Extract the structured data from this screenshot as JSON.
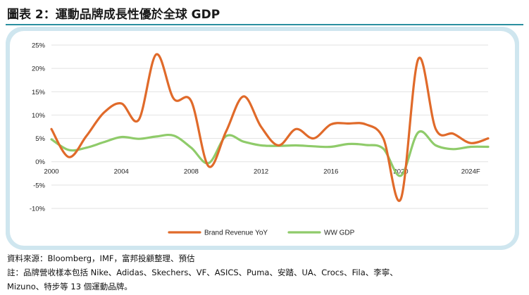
{
  "header": {
    "title": "圖表 2：運動品牌成長性優於全球 GDP",
    "accent_color": "#2a8fa0"
  },
  "panel": {
    "background_color": "#cfe6ef"
  },
  "chart_data": {
    "type": "line",
    "title": "",
    "xlabel": "",
    "ylabel": "",
    "x_ticks": [
      "2000",
      "2004",
      "2008",
      "2012",
      "2016",
      "2020",
      "2024F"
    ],
    "x_tick_years": [
      2000,
      2004,
      2008,
      2012,
      2016,
      2020,
      2024
    ],
    "x_range": [
      2000,
      2025
    ],
    "y_ticks": [
      "25%",
      "20%",
      "15%",
      "10%",
      "5%",
      "0%",
      "-5%",
      "-10%"
    ],
    "y_tick_values": [
      25,
      20,
      15,
      10,
      5,
      0,
      -5,
      -10
    ],
    "ylim": [
      -10,
      25
    ],
    "grid": true,
    "legend_position": "bottom",
    "x": [
      2000,
      2001,
      2002,
      2003,
      2004,
      2005,
      2006,
      2007,
      2008,
      2009,
      2010,
      2011,
      2012,
      2013,
      2014,
      2015,
      2016,
      2017,
      2018,
      2019,
      2020,
      2021,
      2022,
      2023,
      2024,
      2025
    ],
    "series": [
      {
        "name": "Brand Revenue YoY",
        "color": "#e06a2a",
        "values": [
          7,
          1,
          5.5,
          10.5,
          12.5,
          9,
          23,
          13.5,
          13,
          -1,
          6.5,
          14,
          7.5,
          3.5,
          7,
          5,
          8,
          8.2,
          8,
          5,
          -8,
          22,
          7,
          6,
          4,
          5
        ]
      },
      {
        "name": "WW GDP",
        "color": "#8fcb6a",
        "values": [
          4.8,
          2.5,
          3,
          4.2,
          5.3,
          4.9,
          5.4,
          5.6,
          3,
          -0.3,
          5.5,
          4.3,
          3.5,
          3.4,
          3.5,
          3.3,
          3.2,
          3.8,
          3.6,
          2.8,
          -3,
          6.3,
          3.5,
          2.7,
          3.2,
          3.2
        ]
      }
    ]
  },
  "notes": {
    "source": "資料來源：Bloomberg，IMF，富邦投顧整理、預估",
    "note_line1": "註：品牌營收樣本包括 Nike、Adidas、Skechers、VF、ASICS、Puma、安踏、UA、Crocs、Fila、李寧、",
    "note_line2": "Mizuno、特步等 13 個運動品牌。"
  }
}
